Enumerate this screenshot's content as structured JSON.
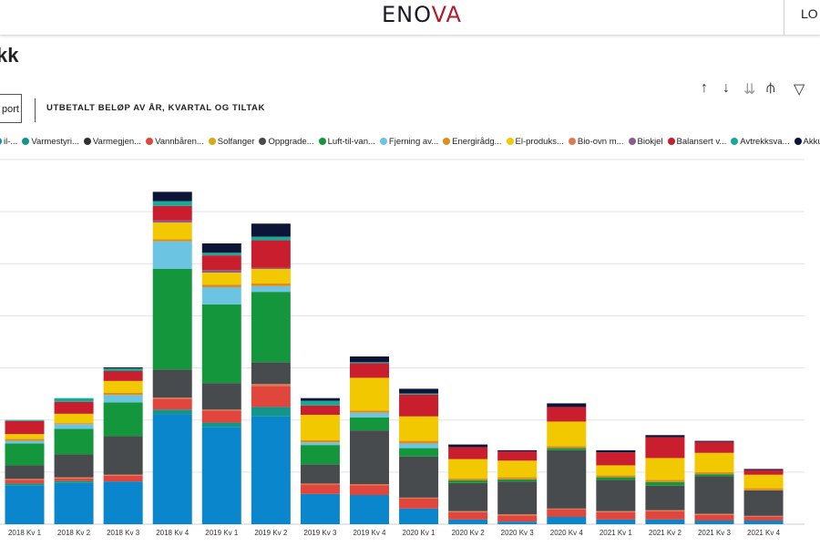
{
  "header": {
    "logo_main": "ENO",
    "logo_accent": "VA",
    "login_label": "LO"
  },
  "page": {
    "title": "kk",
    "export_label": "port"
  },
  "toolbar": {
    "icons": [
      "arrow-up-icon",
      "arrow-down-icon",
      "double-arrow-down-icon",
      "expand-hierarchy-icon",
      "filter-icon"
    ]
  },
  "legend": [
    {
      "label": "il-...",
      "color": "#0a86cc"
    },
    {
      "label": "Varmestyri...",
      "color": "#12958a"
    },
    {
      "label": "Varmegjen...",
      "color": "#2e3133"
    },
    {
      "label": "Vannbåren...",
      "color": "#e0463c"
    },
    {
      "label": "Solfanger",
      "color": "#d6aa10"
    },
    {
      "label": "Oppgrade...",
      "color": "#474b4e"
    },
    {
      "label": "Luft-til-van...",
      "color": "#14963c"
    },
    {
      "label": "Fjerning av...",
      "color": "#6ac4e2"
    },
    {
      "label": "Energirådg...",
      "color": "#e08c1a"
    },
    {
      "label": "El-produks...",
      "color": "#f2c800"
    },
    {
      "label": "Bio-ovn m...",
      "color": "#e07a4e"
    },
    {
      "label": "Biokjel",
      "color": "#8c5c8a"
    },
    {
      "label": "Balansert v...",
      "color": "#c81e2e"
    },
    {
      "label": "Avtrekksva...",
      "color": "#18a898"
    },
    {
      "label": "Akkumulat...",
      "color": "#0c1438"
    }
  ],
  "chart_data": {
    "type": "bar",
    "stacked": true,
    "title": "UTBETALT BELØP AV ÅR, KVARTAL OG TILTAK",
    "xlabel": "",
    "ylabel": "",
    "ylim": [
      0,
      70
    ],
    "grid": true,
    "legend_position": "top",
    "categories": [
      "2018 Kv 1",
      "2018 Kv 2",
      "2018 Kv 3",
      "2018 Kv 4",
      "2019 Kv 1",
      "2019 Kv 2",
      "2019 Kv 3",
      "2019 Kv 4",
      "2020 Kv 1",
      "2020 Kv 2",
      "2020 Kv 3",
      "2020 Kv 4",
      "2021 Kv 1",
      "2021 Kv 2",
      "2021 Kv 3",
      "2021 Kv 4"
    ],
    "series": [
      {
        "name": "il-...",
        "color": "#0a86cc",
        "values": [
          7.4,
          7.9,
          8.2,
          21.1,
          18.6,
          20.7,
          5.8,
          5.6,
          3.0,
          0.9,
          0.5,
          1.4,
          0.9,
          0.9,
          0.7,
          0.7
        ]
      },
      {
        "name": "Varmestyri...",
        "color": "#12958a",
        "values": [
          0.4,
          0.4,
          0,
          0.9,
          0.9,
          1.8,
          0,
          0,
          0,
          0,
          0,
          0,
          0,
          0,
          0,
          0
        ]
      },
      {
        "name": "Vannbåren...",
        "color": "#e0463c",
        "values": [
          0.7,
          0.5,
          1.1,
          2.1,
          2.3,
          4.0,
          1.8,
          1.9,
          1.9,
          1.4,
          1.2,
          1.4,
          1.4,
          1.6,
          1.1,
          0.7
        ]
      },
      {
        "name": "Bio-ovn m...",
        "color": "#e07a4e",
        "values": [
          0.2,
          0.2,
          0.2,
          0.2,
          0.2,
          0.4,
          0.2,
          0.2,
          0.2,
          0.2,
          0.2,
          0.2,
          0.2,
          0.2,
          0.2,
          0.2
        ]
      },
      {
        "name": "Oppgrade...",
        "color": "#474b4e",
        "values": [
          2.6,
          4.4,
          7.4,
          5.4,
          5.1,
          4.2,
          3.7,
          10.3,
          7.9,
          5.4,
          6.3,
          11.2,
          6.0,
          4.7,
          7.2,
          4.9
        ]
      },
      {
        "name": "Luft-til-van...",
        "color": "#14963c",
        "values": [
          4.2,
          4.9,
          6.5,
          19.3,
          15.1,
          13.5,
          3.7,
          2.5,
          1.6,
          0.5,
          0.4,
          0.4,
          0.5,
          0.7,
          0.4,
          0
        ]
      },
      {
        "name": "Fjerning av...",
        "color": "#6ac4e2",
        "values": [
          0.5,
          0.9,
          1.4,
          5.3,
          3.3,
          1.1,
          0.5,
          0.9,
          0.9,
          0,
          0,
          0,
          0,
          0,
          0,
          0
        ]
      },
      {
        "name": "Energirådg...",
        "color": "#e08c1a",
        "values": [
          0.4,
          0.2,
          0.4,
          0.4,
          0.5,
          0.5,
          0.4,
          0.4,
          0.5,
          0.4,
          0.4,
          0.4,
          0.4,
          0.4,
          0.4,
          0.4
        ]
      },
      {
        "name": "El-produks...",
        "color": "#f2c800",
        "values": [
          0.9,
          1.8,
          2.3,
          3.2,
          2.3,
          2.8,
          4.9,
          6.3,
          4.7,
          3.7,
          3.2,
          4.7,
          1.9,
          4.2,
          3.7,
          2.6
        ]
      },
      {
        "name": "Biokjel",
        "color": "#8c5c8a",
        "values": [
          0,
          0,
          0,
          0.4,
          0.5,
          0.2,
          0,
          0,
          0,
          0,
          0,
          0,
          0,
          0,
          0,
          0
        ]
      },
      {
        "name": "Balansert v...",
        "color": "#c81e2e",
        "values": [
          2.5,
          2.3,
          1.9,
          2.8,
          2.8,
          5.3,
          1.8,
          2.8,
          4.2,
          2.3,
          1.8,
          2.8,
          2.5,
          4.0,
          2.1,
          0.9
        ]
      },
      {
        "name": "Avtrekksva...",
        "color": "#18a898",
        "values": [
          0.2,
          0.7,
          0.5,
          0.9,
          0.5,
          0.7,
          0.9,
          0.2,
          0.2,
          0,
          0,
          0,
          0,
          0,
          0,
          0
        ]
      },
      {
        "name": "Akkumulat...",
        "color": "#0c1438",
        "values": [
          0,
          0,
          0.2,
          1.8,
          1.8,
          2.5,
          0.5,
          1.1,
          0.9,
          0.5,
          0.2,
          0.7,
          0.4,
          0.4,
          0.2,
          0.2
        ]
      }
    ]
  }
}
